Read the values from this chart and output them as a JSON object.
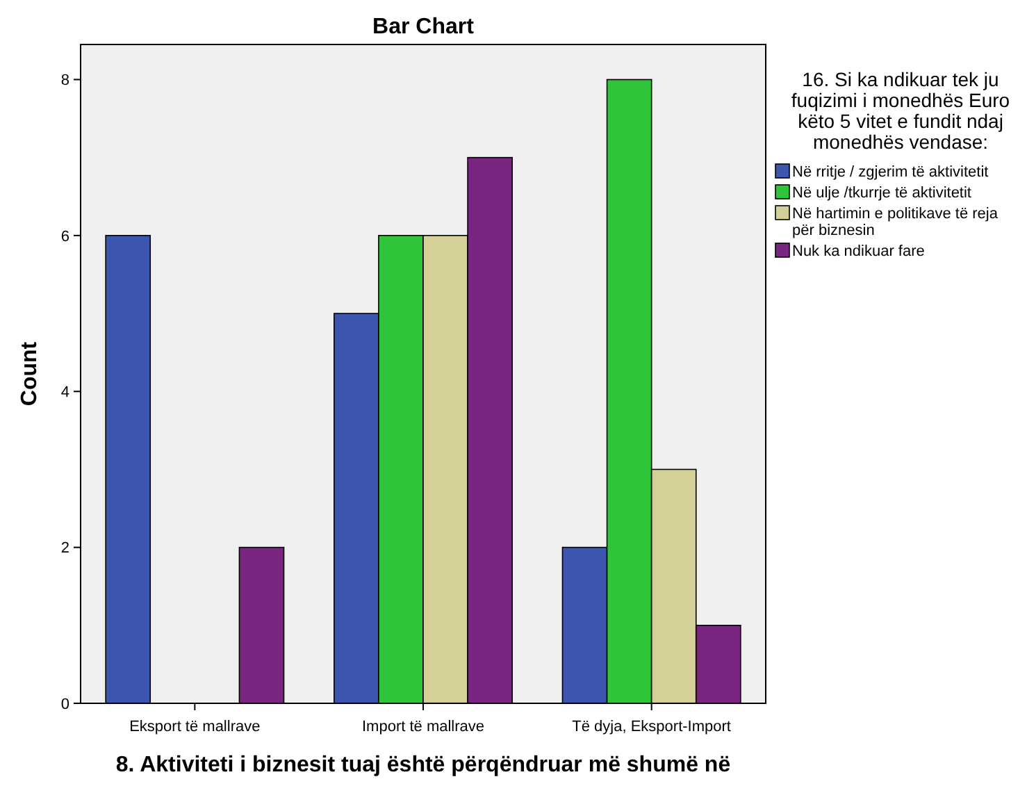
{
  "chart_data": {
    "type": "bar",
    "title": "Bar Chart",
    "xlabel": "8. Aktiviteti i biznesit tuaj është përqëndruar më shumë në",
    "ylabel": "Count",
    "legend_title": "16. Si ka ndikuar tek ju fuqizimi i monedhës Euro këto 5 vitet e fundit ndaj monedhës vendase:",
    "legend": "right",
    "categories": [
      "Eksport të mallrave",
      "Import të mallrave",
      "Të dyja, Eksport-Import"
    ],
    "series": [
      {
        "name": "Në rritje / zgjerim të aktivitetit",
        "color": "#3c55ae",
        "values": [
          6,
          5,
          2
        ]
      },
      {
        "name": "Në ulje /tkurrje të aktivitetit",
        "color": "#2fc43a",
        "values": [
          null,
          6,
          8
        ]
      },
      {
        "name": "Në hartimin e politikave të reja për biznesin",
        "color": "#d5cf98",
        "values": [
          null,
          6,
          3
        ]
      },
      {
        "name": "Nuk ka ndikuar fare",
        "color": "#7a2680",
        "values": [
          2,
          7,
          1
        ]
      }
    ],
    "ylim": [
      0,
      8.45
    ],
    "yticks": [
      0,
      2,
      4,
      6,
      8
    ]
  }
}
